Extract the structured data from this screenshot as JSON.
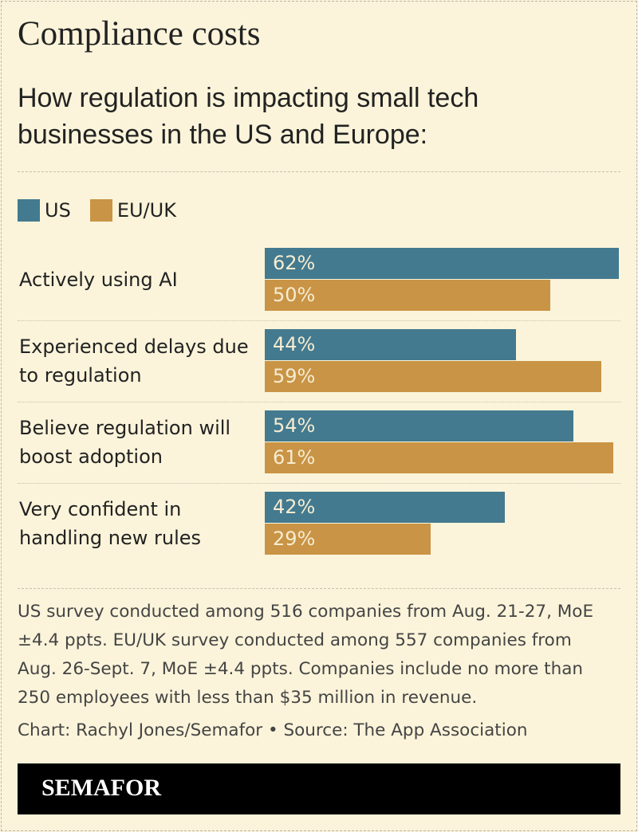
{
  "chart_data": {
    "type": "bar",
    "orientation": "horizontal",
    "title": "Compliance costs",
    "subtitle": "How regulation is impacting small tech businesses in the US and Europe:",
    "categories": [
      "Actively using AI",
      "Experienced delays due to regulation",
      "Believe regulation will boost adoption",
      "Very confident in handling new rules"
    ],
    "series": [
      {
        "name": "US",
        "color": "#437a8f",
        "values": [
          62,
          44,
          54,
          42
        ],
        "value_labels": [
          "62%",
          "44%",
          "54%",
          "42%"
        ]
      },
      {
        "name": "EU/UK",
        "color": "#c99445",
        "values": [
          50,
          59,
          61,
          29
        ],
        "value_labels": [
          "50%",
          "59%",
          "61%",
          "29%"
        ]
      }
    ],
    "legend": "top-left",
    "note": "US survey conducted among 516 companies from Aug. 21-27, MoE ±4.4 ppts. EU/UK survey conducted among 557 companies from Aug. 26-Sept. 7, MoE ±4.4 ppts. Companies include no more than 250 employees with less than $35 million in revenue.",
    "credit": "Chart: Rachyl Jones/Semafor • Source: The App Association"
  },
  "brand": "SEMAFOR"
}
